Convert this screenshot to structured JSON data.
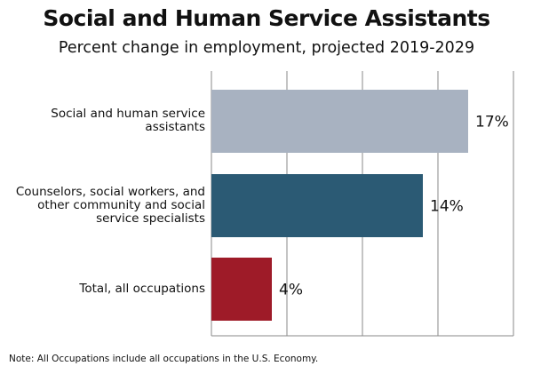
{
  "chart_data": {
    "type": "bar",
    "orientation": "horizontal",
    "title": "Social and Human Service Assistants",
    "subtitle": "Percent change in employment, projected 2019-2029",
    "categories": [
      "Social and human service assistants",
      "Counselors, social workers, and other community and social service specialists",
      "Total, all occupations"
    ],
    "values": [
      17,
      14,
      4
    ],
    "data_labels": [
      "17%",
      "14%",
      "4%"
    ],
    "colors": [
      "#a8b2c1",
      "#2b5a74",
      "#9e1b28"
    ],
    "xlim": [
      0,
      20
    ],
    "grid": true,
    "xlabel": "",
    "ylabel": ""
  },
  "note": "Note: All Occupations include all occupations in the U.S. Economy."
}
